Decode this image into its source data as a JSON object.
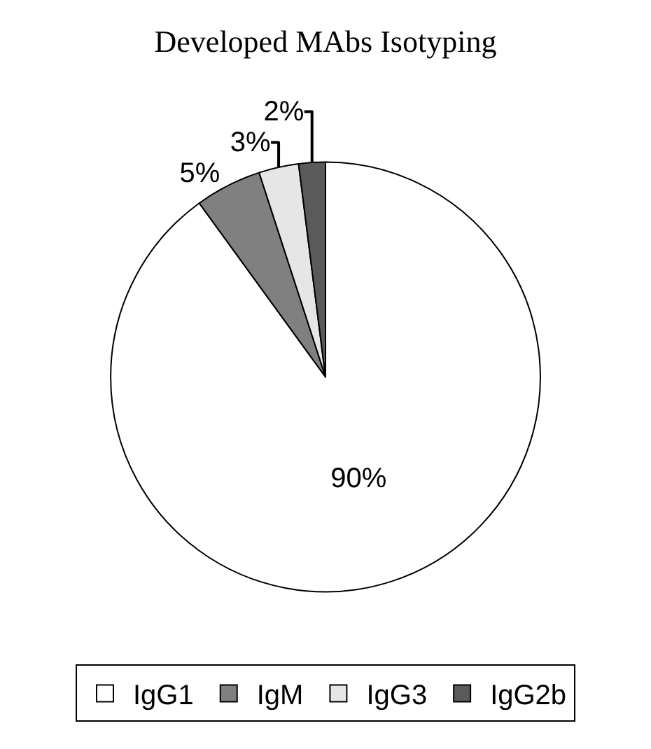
{
  "chart_data": {
    "type": "pie",
    "title": "Developed MAbs Isotyping",
    "categories": [
      "IgG1",
      "IgM",
      "IgG3",
      "IgG2b"
    ],
    "values": [
      90,
      5,
      3,
      2
    ],
    "value_labels": [
      "90%",
      "5%",
      "3%",
      "2%"
    ],
    "colors": [
      "#ffffff",
      "#808080",
      "#e6e6e6",
      "#5a5a5a"
    ],
    "legend": "bottom"
  }
}
